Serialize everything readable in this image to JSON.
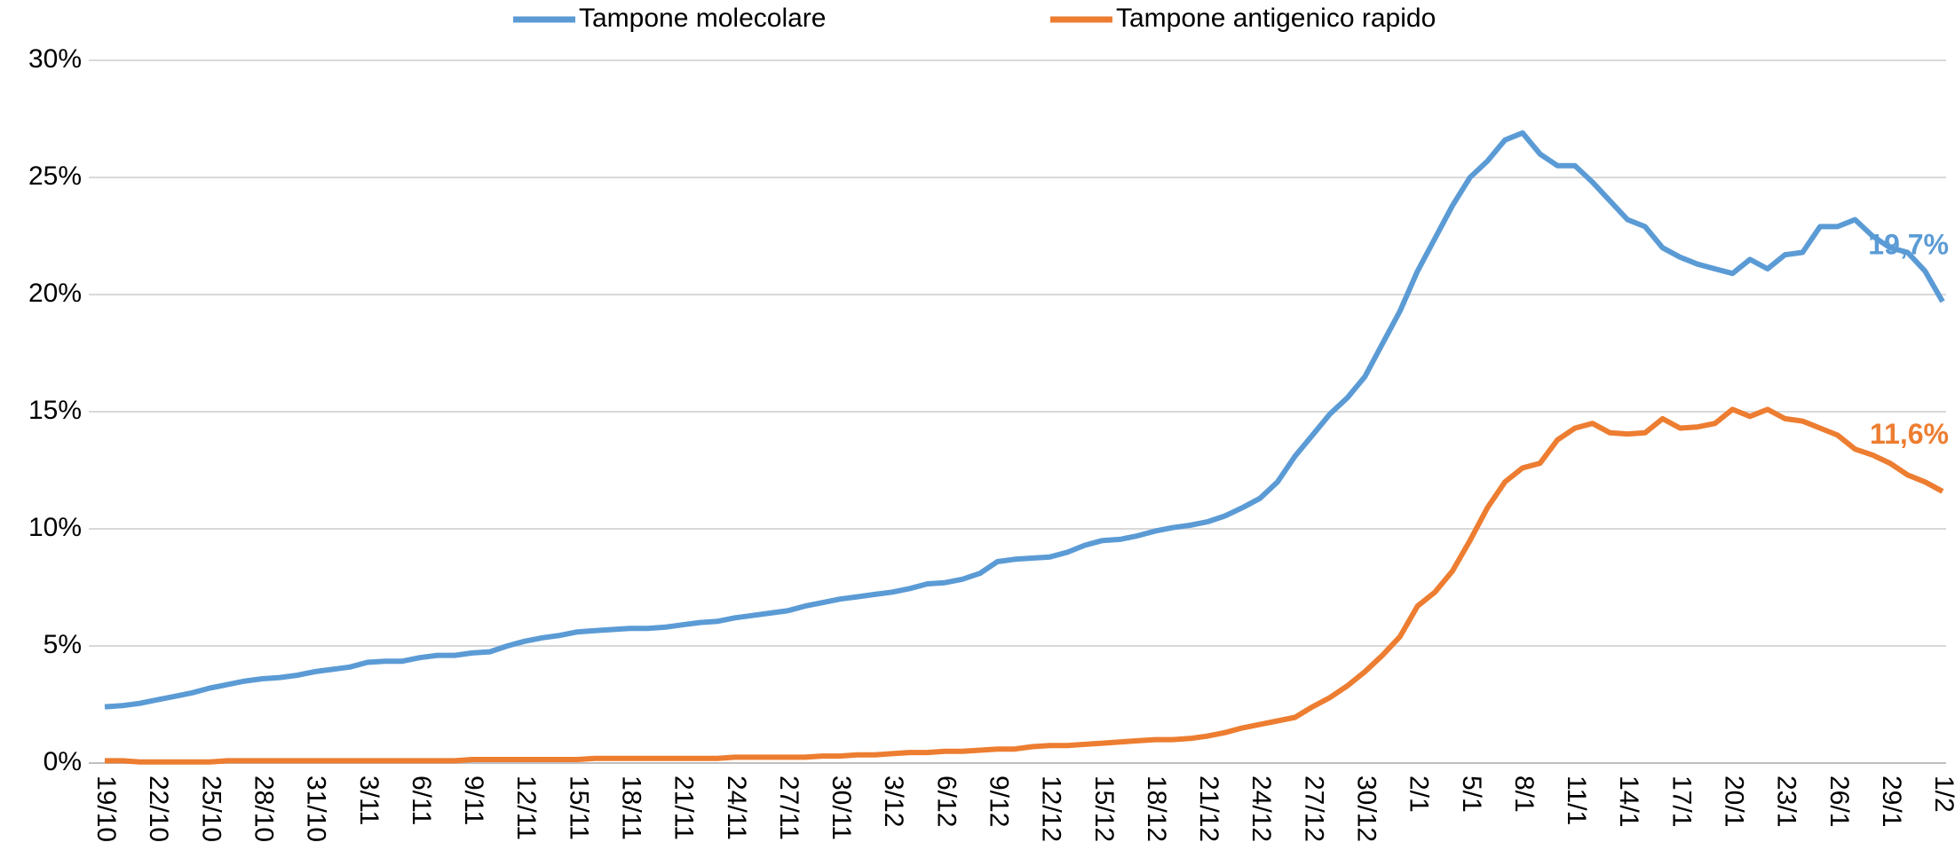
{
  "chart_data": {
    "type": "line",
    "categories": [
      "19/10",
      null,
      null,
      "22/10",
      null,
      null,
      "25/10",
      null,
      null,
      "28/10",
      null,
      null,
      "31/10",
      null,
      null,
      "3/11",
      null,
      null,
      "6/11",
      null,
      null,
      "9/11",
      null,
      null,
      "12/11",
      null,
      null,
      "15/11",
      null,
      null,
      "18/11",
      null,
      null,
      "21/11",
      null,
      null,
      "24/11",
      null,
      null,
      "27/11",
      null,
      null,
      "30/11",
      null,
      null,
      "3/12",
      null,
      null,
      "6/12",
      null,
      null,
      "9/12",
      null,
      null,
      "12/12",
      null,
      null,
      "15/12",
      null,
      null,
      "18/12",
      null,
      null,
      "21/12",
      null,
      null,
      "24/12",
      null,
      null,
      "27/12",
      null,
      null,
      "30/12",
      null,
      null,
      "2/1",
      null,
      null,
      "5/1",
      null,
      null,
      "8/1",
      null,
      null,
      "11/1",
      null,
      null,
      "14/1",
      null,
      null,
      "17/1",
      null,
      null,
      "20/1",
      null,
      null,
      "23/1",
      null,
      null,
      "26/1",
      null,
      null,
      "29/1",
      null,
      null,
      "1/2"
    ],
    "series": [
      {
        "name": "Tampone molecolare",
        "color": "#5b9bd5",
        "values": [
          2.4,
          2.45,
          2.55,
          2.7,
          2.85,
          3.0,
          3.2,
          3.35,
          3.5,
          3.6,
          3.65,
          3.75,
          3.9,
          4.0,
          4.1,
          4.3,
          4.35,
          4.35,
          4.5,
          4.6,
          4.6,
          4.7,
          4.75,
          5.0,
          5.2,
          5.35,
          5.45,
          5.6,
          5.65,
          5.7,
          5.75,
          5.75,
          5.8,
          5.9,
          6.0,
          6.05,
          6.2,
          6.3,
          6.4,
          6.5,
          6.7,
          6.85,
          7.0,
          7.1,
          7.2,
          7.3,
          7.45,
          7.65,
          7.7,
          7.85,
          8.1,
          8.6,
          8.7,
          8.75,
          8.8,
          9.0,
          9.3,
          9.5,
          9.55,
          9.7,
          9.9,
          10.05,
          10.15,
          10.3,
          10.55,
          10.9,
          11.3,
          12.0,
          13.1,
          14.0,
          14.9,
          15.6,
          16.5,
          17.9,
          19.3,
          21.0,
          22.4,
          23.8,
          25.0,
          25.7,
          26.6,
          26.9,
          26.0,
          25.5,
          25.5,
          24.8,
          24.0,
          23.2,
          22.9,
          22.0,
          21.6,
          21.3,
          21.1,
          20.9,
          21.5,
          21.1,
          21.7,
          21.8,
          22.9,
          22.9,
          23.2,
          22.5,
          22.0,
          21.8,
          21.0,
          19.7
        ],
        "value_labels": [
          null,
          null,
          null,
          null,
          null,
          null,
          null,
          null,
          null,
          null,
          null,
          null,
          null,
          null,
          null,
          null,
          null,
          null,
          null,
          null,
          null,
          null,
          null,
          null,
          null,
          null,
          null,
          null,
          null,
          null,
          null,
          null,
          null,
          null,
          null,
          null,
          null,
          null,
          null,
          null,
          null,
          null,
          null,
          null,
          null,
          null,
          null,
          null,
          null,
          null,
          null,
          null,
          null,
          null,
          null,
          null,
          null,
          null,
          null,
          null,
          null,
          null,
          null,
          null,
          null,
          null,
          null,
          null,
          null,
          null,
          null,
          null,
          null,
          null,
          null,
          null,
          null,
          null,
          null,
          null,
          null,
          null,
          null,
          null,
          null,
          null,
          null,
          null,
          null,
          null,
          null,
          null,
          null,
          null,
          null,
          null,
          null,
          null,
          null,
          null,
          null,
          null,
          null,
          null,
          null,
          "19,7%"
        ]
      },
      {
        "name": "Tampone antigenico rapido",
        "color": "#ed7d31",
        "values": [
          0.1,
          0.1,
          0.05,
          0.05,
          0.05,
          0.05,
          0.05,
          0.1,
          0.1,
          0.1,
          0.1,
          0.1,
          0.1,
          0.1,
          0.1,
          0.1,
          0.1,
          0.1,
          0.1,
          0.1,
          0.1,
          0.15,
          0.15,
          0.15,
          0.15,
          0.15,
          0.15,
          0.15,
          0.2,
          0.2,
          0.2,
          0.2,
          0.2,
          0.2,
          0.2,
          0.2,
          0.25,
          0.25,
          0.25,
          0.25,
          0.25,
          0.3,
          0.3,
          0.35,
          0.35,
          0.4,
          0.45,
          0.45,
          0.5,
          0.5,
          0.55,
          0.6,
          0.6,
          0.7,
          0.75,
          0.75,
          0.8,
          0.85,
          0.9,
          0.95,
          1.0,
          1.0,
          1.05,
          1.15,
          1.3,
          1.5,
          1.65,
          1.8,
          1.95,
          2.4,
          2.8,
          3.3,
          3.9,
          4.6,
          5.4,
          6.7,
          7.3,
          8.2,
          9.5,
          10.9,
          12.0,
          12.6,
          12.8,
          13.8,
          14.3,
          14.5,
          14.1,
          14.05,
          14.1,
          14.7,
          14.3,
          14.35,
          14.5,
          15.1,
          14.8,
          15.1,
          14.7,
          14.6,
          14.3,
          14.0,
          13.4,
          13.15,
          12.8,
          12.3,
          12.0,
          11.6
        ],
        "value_labels": [
          null,
          null,
          null,
          null,
          null,
          null,
          null,
          null,
          null,
          null,
          null,
          null,
          null,
          null,
          null,
          null,
          null,
          null,
          null,
          null,
          null,
          null,
          null,
          null,
          null,
          null,
          null,
          null,
          null,
          null,
          null,
          null,
          null,
          null,
          null,
          null,
          null,
          null,
          null,
          null,
          null,
          null,
          null,
          null,
          null,
          null,
          null,
          null,
          null,
          null,
          null,
          null,
          null,
          null,
          null,
          null,
          null,
          null,
          null,
          null,
          null,
          null,
          null,
          null,
          null,
          null,
          null,
          null,
          null,
          null,
          null,
          null,
          null,
          null,
          null,
          null,
          null,
          null,
          null,
          null,
          null,
          null,
          null,
          null,
          null,
          null,
          null,
          null,
          null,
          null,
          null,
          null,
          null,
          null,
          null,
          null,
          null,
          null,
          null,
          null,
          null,
          null,
          null,
          null,
          null,
          "11,6%"
        ]
      }
    ],
    "ylim": [
      0,
      30
    ],
    "yticks": [
      {
        "value": 0,
        "label": "0%"
      },
      {
        "value": 5,
        "label": "5%"
      },
      {
        "value": 10,
        "label": "10%"
      },
      {
        "value": 15,
        "label": "15%"
      },
      {
        "value": 20,
        "label": "20%"
      },
      {
        "value": 25,
        "label": "25%"
      },
      {
        "value": 30,
        "label": "30%"
      }
    ],
    "grid": true,
    "legend": "top"
  }
}
